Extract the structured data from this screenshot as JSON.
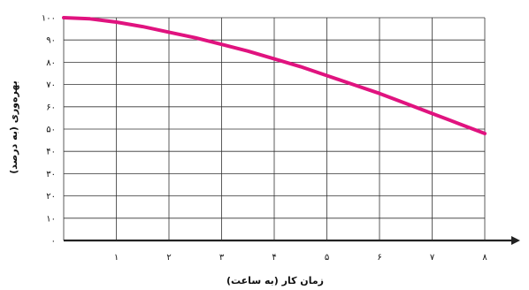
{
  "chart_data": {
    "type": "line",
    "title": "",
    "xlabel": "زمان کار (به ساعت)",
    "ylabel": "بهره‌وری (به درصد)",
    "xlim": [
      0,
      8
    ],
    "ylim": [
      0,
      100
    ],
    "x_ticks": [
      {
        "value": 1,
        "label": "۱"
      },
      {
        "value": 2,
        "label": "۲"
      },
      {
        "value": 3,
        "label": "۳"
      },
      {
        "value": 4,
        "label": "۴"
      },
      {
        "value": 5,
        "label": "۵"
      },
      {
        "value": 6,
        "label": "۶"
      },
      {
        "value": 7,
        "label": "۷"
      },
      {
        "value": 8,
        "label": "۸"
      }
    ],
    "y_ticks": [
      {
        "value": 0,
        "label": "۰"
      },
      {
        "value": 10,
        "label": "۱۰"
      },
      {
        "value": 20,
        "label": "۲۰"
      },
      {
        "value": 30,
        "label": "۳۰"
      },
      {
        "value": 40,
        "label": "۴۰"
      },
      {
        "value": 50,
        "label": "۵۰"
      },
      {
        "value": 60,
        "label": "۶۰"
      },
      {
        "value": 70,
        "label": "۷۰"
      },
      {
        "value": 80,
        "label": "۸۰"
      },
      {
        "value": 90,
        "label": "۹۰"
      },
      {
        "value": 100,
        "label": "۱۰۰"
      }
    ],
    "grid": true,
    "series": [
      {
        "color": "#e0137f",
        "x": [
          0,
          0.5,
          1,
          1.5,
          2,
          2.5,
          3,
          3.5,
          4,
          4.5,
          5,
          5.5,
          6,
          6.5,
          7,
          7.5,
          8
        ],
        "y": [
          100,
          99.5,
          98,
          96,
          93.5,
          91,
          88,
          85,
          81.5,
          78,
          74,
          70,
          66,
          61.5,
          57,
          52.5,
          48
        ]
      }
    ]
  }
}
